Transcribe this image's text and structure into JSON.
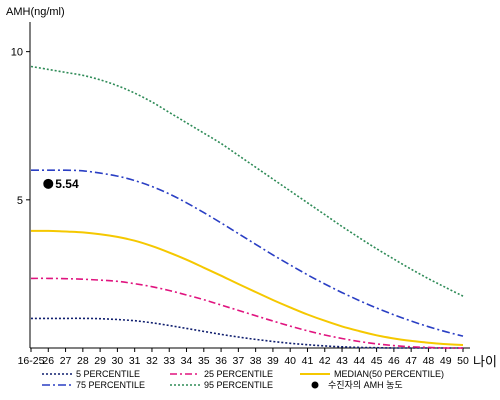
{
  "chart_data": {
    "type": "line",
    "ylabel": "AMH(ng/ml)",
    "xlabel": "나이",
    "ylim": [
      0,
      11
    ],
    "yticks": [
      5,
      10
    ],
    "categories": [
      "16-25",
      "26",
      "27",
      "28",
      "29",
      "30",
      "31",
      "32",
      "33",
      "34",
      "35",
      "36",
      "37",
      "38",
      "39",
      "40",
      "41",
      "42",
      "43",
      "44",
      "45",
      "46",
      "47",
      "48",
      "49",
      "50"
    ],
    "series": [
      {
        "name": "5 PERCENTILE",
        "color": "#0f1e6e",
        "dash": "2,2",
        "values": [
          1.0,
          1.0,
          1.0,
          1.0,
          0.99,
          0.96,
          0.92,
          0.85,
          0.76,
          0.66,
          0.56,
          0.46,
          0.37,
          0.29,
          0.22,
          0.16,
          0.11,
          0.07,
          0.04,
          0.02,
          0.01,
          0.0,
          0.0,
          0.0,
          0.0,
          0.0
        ]
      },
      {
        "name": "25 PERCENTILE",
        "color": "#e0147f",
        "dash": "7,3,2,3",
        "values": [
          2.35,
          2.35,
          2.34,
          2.32,
          2.29,
          2.25,
          2.17,
          2.07,
          1.94,
          1.79,
          1.63,
          1.45,
          1.27,
          1.09,
          0.91,
          0.74,
          0.58,
          0.44,
          0.32,
          0.22,
          0.14,
          0.08,
          0.04,
          0.02,
          0.0,
          0.0
        ]
      },
      {
        "name": "MEDIAN(50 PERCENTILE)",
        "color": "#f5c800",
        "dash": "",
        "values": [
          3.95,
          3.95,
          3.93,
          3.9,
          3.84,
          3.75,
          3.62,
          3.44,
          3.22,
          2.98,
          2.71,
          2.44,
          2.16,
          1.89,
          1.62,
          1.37,
          1.13,
          0.92,
          0.73,
          0.57,
          0.43,
          0.32,
          0.24,
          0.18,
          0.13,
          0.1
        ]
      },
      {
        "name": "75 PERCENTILE",
        "color": "#2a3fc4",
        "dash": "8,3,2,3",
        "values": [
          6.0,
          6.0,
          6.0,
          5.98,
          5.9,
          5.8,
          5.65,
          5.45,
          5.2,
          4.9,
          4.57,
          4.22,
          3.86,
          3.5,
          3.14,
          2.8,
          2.47,
          2.16,
          1.87,
          1.6,
          1.35,
          1.12,
          0.91,
          0.72,
          0.55,
          0.4
        ]
      },
      {
        "name": "95 PERCENTILE",
        "color": "#2e8b57",
        "dash": "2,2",
        "values": [
          9.5,
          9.4,
          9.3,
          9.2,
          9.05,
          8.85,
          8.6,
          8.3,
          7.95,
          7.6,
          7.25,
          6.9,
          6.5,
          6.1,
          5.7,
          5.3,
          4.9,
          4.5,
          4.1,
          3.72,
          3.35,
          3.0,
          2.66,
          2.34,
          2.04,
          1.75
        ]
      }
    ],
    "marker": {
      "label": "5.54",
      "legend": "수진자의 AMH 농도",
      "x": "26",
      "y": 5.54,
      "color": "#000000"
    },
    "legend": [
      {
        "label": "5 PERCENTILE",
        "series": 0
      },
      {
        "label": "25 PERCENTILE",
        "series": 1
      },
      {
        "label": "MEDIAN(50 PERCENTILE)",
        "series": 2
      },
      {
        "label": "75 PERCENTILE",
        "series": 3
      },
      {
        "label": "95 PERCENTILE",
        "series": 4
      },
      {
        "label": "수진자의 AMH 농도",
        "marker": true
      }
    ]
  }
}
